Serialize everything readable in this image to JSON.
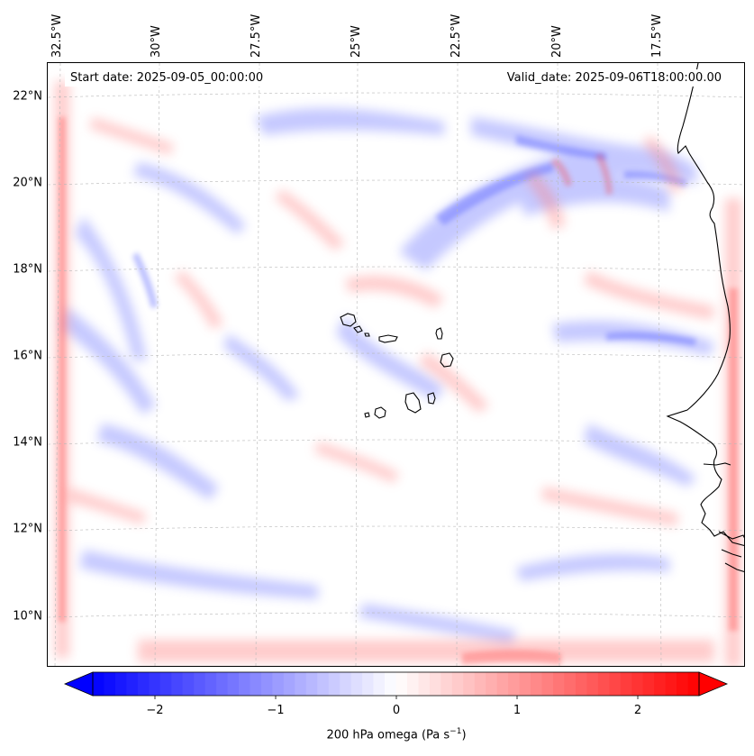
{
  "header": {
    "start_date": "Start date: 2025-09-05_00:00:00",
    "valid_date": "Valid_date: 2025-09-06T18:00:00.00"
  },
  "axes": {
    "lon_labels": [
      "32.5°W",
      "30°W",
      "27.5°W",
      "25°W",
      "22.5°W",
      "20°W",
      "17.5°W"
    ],
    "lat_labels": [
      "22°N",
      "20°N",
      "18°N",
      "16°N",
      "14°N",
      "12°N",
      "10°N"
    ]
  },
  "colorbar": {
    "ticks": [
      "−2",
      "−1",
      "0",
      "1",
      "2"
    ],
    "label_main": "200 hPa omega (Pa s",
    "label_exp": "−1",
    "label_close": ")",
    "vmin": -2.7,
    "vmax": 2.7,
    "low_color": "#0000ff",
    "mid_color": "#ffffff",
    "high_color": "#ff0000"
  },
  "map": {
    "extent_lon": [
      -32.7,
      -15.3
    ],
    "extent_lat": [
      8.9,
      22.8
    ],
    "grid_color": "#b0b0b0",
    "coast_color": "#000000"
  }
}
